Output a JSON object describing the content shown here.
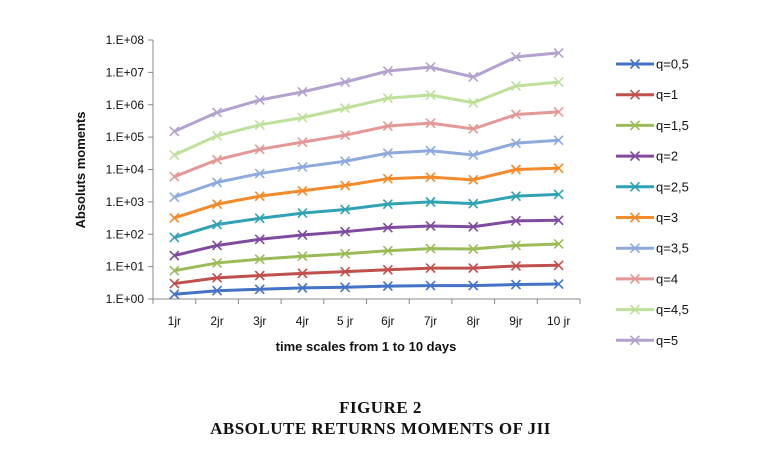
{
  "chart_data": {
    "type": "line",
    "title": "",
    "xlabel": "time scales from 1 to 10 days",
    "ylabel": "Absoluts moments",
    "yscale": "log",
    "ylim": [
      1,
      100000000
    ],
    "y_ticks": [
      "1.E+00",
      "1.E+01",
      "1.E+02",
      "1.E+03",
      "1.E+04",
      "1.E+05",
      "1.E+06",
      "1.E+07",
      "1.E+08"
    ],
    "categories": [
      "1jr",
      "2jr",
      "3jr",
      "4jr",
      "5 jr",
      "6jr",
      "7jr",
      "8jr",
      "9jr",
      "10 jr"
    ],
    "grid": false,
    "legend_position": "right",
    "series": [
      {
        "name": "q=0,5",
        "color": "#4472C4",
        "values": [
          1.4,
          1.8,
          2.0,
          2.2,
          2.3,
          2.5,
          2.6,
          2.6,
          2.8,
          2.9
        ]
      },
      {
        "name": "q=1",
        "color": "#C0504D",
        "values": [
          3,
          4.5,
          5.3,
          6.2,
          7,
          8,
          9,
          9,
          10.5,
          11
        ]
      },
      {
        "name": "q=1,5",
        "color": "#9BBB59",
        "values": [
          7.5,
          13,
          17,
          21,
          25,
          31,
          36,
          35,
          45,
          50
        ]
      },
      {
        "name": "q=2",
        "color": "#7F4B9E",
        "values": [
          22,
          45,
          70,
          95,
          120,
          160,
          180,
          170,
          260,
          270
        ]
      },
      {
        "name": "q=2,5",
        "color": "#31A2B3",
        "values": [
          80,
          200,
          310,
          450,
          580,
          850,
          1000,
          880,
          1500,
          1700
        ]
      },
      {
        "name": "q=3",
        "color": "#F38A2B",
        "values": [
          320,
          850,
          1500,
          2200,
          3200,
          5200,
          5800,
          4800,
          10000,
          11000
        ]
      },
      {
        "name": "q=3,5",
        "color": "#8EAADC",
        "values": [
          1400,
          4000,
          7500,
          12000,
          18000,
          32000,
          38000,
          28000,
          65000,
          80000
        ]
      },
      {
        "name": "q=4",
        "color": "#E39896",
        "values": [
          6000,
          20000,
          42000,
          70000,
          115000,
          220000,
          270000,
          180000,
          500000,
          600000
        ]
      },
      {
        "name": "q=4,5",
        "color": "#BDE09A",
        "values": [
          28000,
          110000,
          240000,
          400000,
          780000,
          1600000,
          2000000,
          1150000,
          3800000,
          5000000
        ]
      },
      {
        "name": "q=5",
        "color": "#B4A2CE",
        "values": [
          150000,
          580000,
          1400000,
          2500000,
          5000000,
          11000000,
          14500000,
          7200000,
          30000000,
          40000000
        ]
      }
    ]
  },
  "caption": {
    "line1": "FIGURE 2",
    "line2": "ABSOLUTE RETURNS MOMENTS OF JII"
  }
}
